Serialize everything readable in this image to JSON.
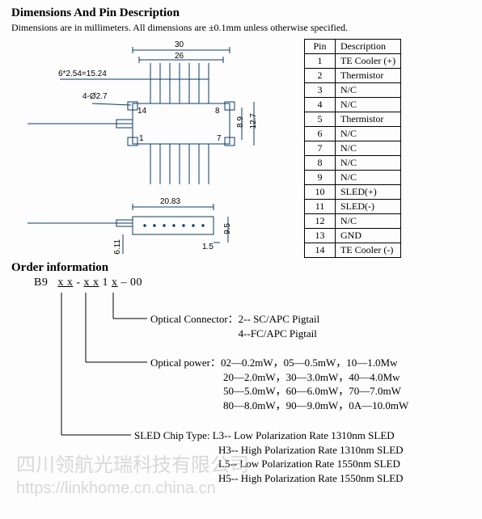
{
  "title": "Dimensions And Pin Description",
  "subtitle": "Dimensions are in millimeters. All dimensions are ±0.1mm unless otherwise specified.",
  "drawing": {
    "dim_30": "30",
    "dim_26": "26",
    "dim_pins_calc": "6*2.54=15.24",
    "dim_hole": "4-Ø2.7",
    "dim_89": "8.9",
    "dim_127": "12.7",
    "dim_2083": "20.83",
    "dim_95": "9.5",
    "dim_15": "1.5",
    "dim_611": "6.11",
    "pin_left": "14",
    "pin_right": "8",
    "pin_bl": "1",
    "pin_br": "7",
    "line_color": "#0a3a66",
    "bg": "#fdfdfd"
  },
  "pin_table": {
    "headers": [
      "Pin",
      "Description"
    ],
    "rows": [
      [
        "1",
        "TE Cooler (+)"
      ],
      [
        "2",
        "Thermistor"
      ],
      [
        "3",
        "N/C"
      ],
      [
        "4",
        "N/C"
      ],
      [
        "5",
        "Thermistor"
      ],
      [
        "6",
        "N/C"
      ],
      [
        "7",
        "N/C"
      ],
      [
        "8",
        "N/C"
      ],
      [
        "9",
        "N/C"
      ],
      [
        "10",
        "SLED(+)"
      ],
      [
        "11",
        "SLED(-)"
      ],
      [
        "12",
        "N/C"
      ],
      [
        "13",
        "GND"
      ],
      [
        "14",
        "TE Cooler (-)"
      ]
    ]
  },
  "order_title": "Order information",
  "order_code": {
    "prefix": "B9",
    "seg1": "x x",
    "dash1": "-",
    "seg2": "x x",
    "mid": " 1 ",
    "seg3": "x",
    "dash2": "– ",
    "suffix": "00"
  },
  "order_info": {
    "connector_label": "Optical Connector：",
    "connector_lines": [
      "2-- SC/APC Pigtail",
      "4--FC/APC Pigtail"
    ],
    "power_label": "Optical power：",
    "power_lines": [
      "02—0.2mW，05—0.5mW，10—1.0Mw",
      "20—2.0mW，30—3.0mW，40—4.0Mw",
      "50—5.0mW，60—6.0mW，70—7.0mW",
      "80—8.0mW，90—9.0mW，0A—10.0mW"
    ],
    "chip_label": "SLED Chip Type: ",
    "chip_lines": [
      "L3-- Low Polarization Rate 1310nm SLED",
      "H3-- High Polarization Rate 1310nm SLED",
      "L5-- Low Polarization Rate 1550nm SLED",
      "H5-- High Polarization Rate 1550nm SLED"
    ]
  },
  "watermark_text": "四川领航光瑞科技有限公司",
  "watermark_url": "https://linkhome.cn.china.cn"
}
